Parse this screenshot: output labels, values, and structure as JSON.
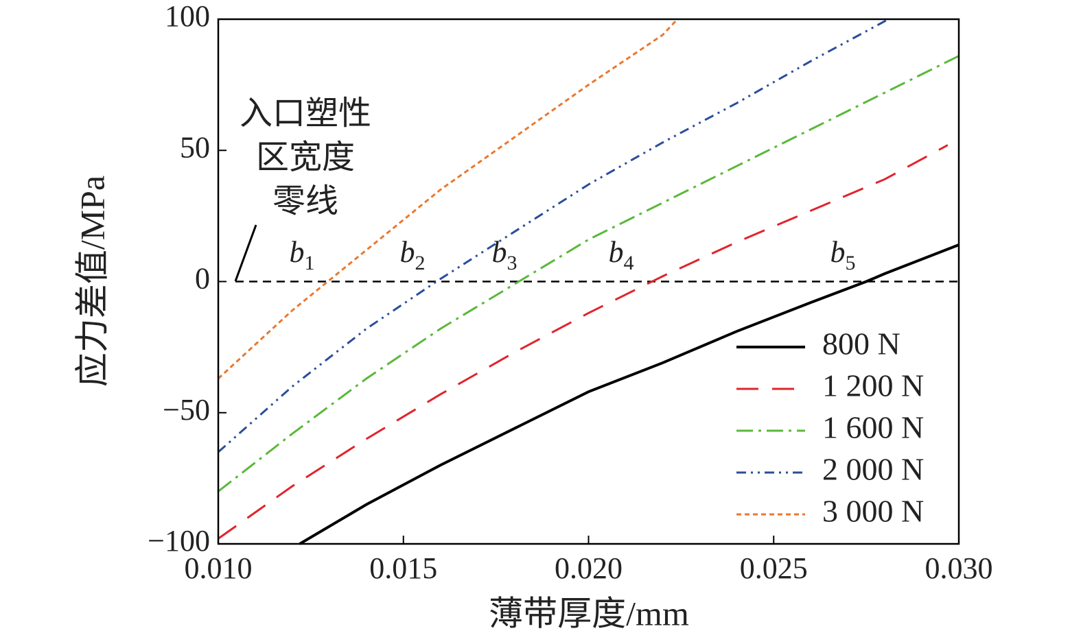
{
  "chart_data": {
    "type": "line",
    "xlabel": "薄带厚度/mm",
    "ylabel": "应力差值/MPa",
    "xlim": [
      0.01,
      0.03
    ],
    "ylim": [
      -100,
      100
    ],
    "xticks": [
      {
        "value": 0.01,
        "label": "0.010"
      },
      {
        "value": 0.015,
        "label": "0.015"
      },
      {
        "value": 0.02,
        "label": "0.020"
      },
      {
        "value": 0.025,
        "label": "0.025"
      },
      {
        "value": 0.03,
        "label": "0.030"
      }
    ],
    "yticks": [
      {
        "value": -100,
        "label": "−100"
      },
      {
        "value": -50,
        "label": "−50"
      },
      0,
      50,
      100
    ],
    "zero_line": 0,
    "legend": "lower right",
    "annotation": [
      "入口塑性",
      "区宽度",
      "零线"
    ],
    "point_labels": [
      {
        "base": "b",
        "sub": "1"
      },
      {
        "base": "b",
        "sub": "2"
      },
      {
        "base": "b",
        "sub": "3"
      },
      {
        "base": "b",
        "sub": "4"
      },
      {
        "base": "b",
        "sub": "5"
      }
    ],
    "series": [
      {
        "name": "800 N",
        "color": "#000000",
        "linestyle": "solid",
        "x": [
          0.0122,
          0.014,
          0.016,
          0.018,
          0.02,
          0.022,
          0.024,
          0.026,
          0.0275,
          0.028,
          0.03
        ],
        "values": [
          -100,
          -85,
          -70,
          -56,
          -42,
          -31,
          -19,
          -8,
          0,
          3,
          14
        ]
      },
      {
        "name": "1 200 N",
        "color": "#e0242c",
        "linestyle": "dashed",
        "x": [
          0.01,
          0.012,
          0.014,
          0.016,
          0.018,
          0.02,
          0.022,
          0.024,
          0.026,
          0.028,
          0.0297
        ],
        "values": [
          -98,
          -78,
          -60,
          -43,
          -27,
          -12,
          2,
          15,
          27,
          39,
          52
        ]
      },
      {
        "name": "1 600 N",
        "color": "#5ab83a",
        "linestyle": "dashdot",
        "x": [
          0.01,
          0.012,
          0.014,
          0.016,
          0.018,
          0.02,
          0.022,
          0.024,
          0.026,
          0.028,
          0.03
        ],
        "values": [
          -80,
          -58,
          -37,
          -18,
          -1,
          16,
          30,
          44,
          58,
          72,
          86
        ]
      },
      {
        "name": "2 000 N",
        "color": "#2a4d9c",
        "linestyle": "dashdotdot",
        "x": [
          0.01,
          0.012,
          0.014,
          0.016,
          0.018,
          0.02,
          0.022,
          0.024,
          0.026,
          0.0281
        ],
        "values": [
          -65,
          -40,
          -18,
          1,
          19,
          37,
          53,
          68,
          84,
          100
        ]
      },
      {
        "name": "3 000 N",
        "color": "#e9782f",
        "linestyle": "dotted",
        "x": [
          0.01,
          0.012,
          0.014,
          0.016,
          0.018,
          0.02,
          0.022,
          0.0224
        ],
        "values": [
          -37,
          -11,
          12,
          35,
          55,
          75,
          94,
          100
        ]
      }
    ]
  }
}
